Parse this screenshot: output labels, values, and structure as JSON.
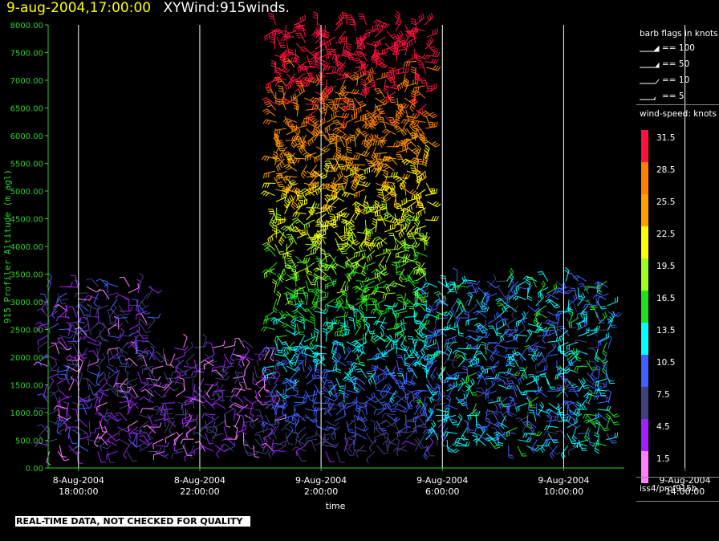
{
  "header": {
    "datetime": "9-aug-2004,17:00:00",
    "product": "XYWind:915winds."
  },
  "colors": {
    "axis": "#30d030",
    "grid": "#ffffff",
    "title_date": "#ffff00"
  },
  "legend": {
    "barb_title": "barb flags in knots",
    "barb_flags": [
      "== 100",
      "== 50",
      "== 10",
      "== 5"
    ],
    "speed_title": "wind-speed: knots",
    "speed_scale": [
      {
        "label": "31.5",
        "color": "#ff1040"
      },
      {
        "label": "28.5",
        "color": "#ff8000"
      },
      {
        "label": "25.5",
        "color": "#ffa000"
      },
      {
        "label": "22.5",
        "color": "#ffff00"
      },
      {
        "label": "19.5",
        "color": "#a0ff20"
      },
      {
        "label": "16.5",
        "color": "#20e020"
      },
      {
        "label": "13.5",
        "color": "#00ffff"
      },
      {
        "label": "10.5",
        "color": "#4060ff"
      },
      {
        "label": "7.5",
        "color": "#404080"
      },
      {
        "label": "4.5",
        "color": "#a020ff"
      },
      {
        "label": "1.5",
        "color": "#ff80ff"
      }
    ],
    "station": "iss4/prof915h"
  },
  "footer": {
    "qc_notice": "REAL-TIME DATA, NOT CHECKED FOR QUALITY"
  },
  "chart_data": {
    "type": "wind-barb time-height profile",
    "ylabel": "915 Profiler Altitude (m agl)",
    "xlabel": "time",
    "ylim": [
      0,
      8000
    ],
    "y_ticks": [
      "0.00",
      "500.00",
      "1000.00",
      "1500.00",
      "2000.00",
      "2500.00",
      "3000.00",
      "3500.00",
      "4000.00",
      "4500.00",
      "5000.00",
      "5500.00",
      "6000.00",
      "6500.00",
      "7000.00",
      "7500.00",
      "8000.00"
    ],
    "x_ticks": [
      {
        "date": "8-Aug-2004",
        "time": "18:00:00"
      },
      {
        "date": "8-Aug-2004",
        "time": "22:00:00"
      },
      {
        "date": "9-Aug-2004",
        "time": "2:00:00"
      },
      {
        "date": "9-Aug-2004",
        "time": "6:00:00"
      },
      {
        "date": "9-Aug-2004",
        "time": "10:00:00"
      },
      {
        "date": "9-Aug-2004",
        "time": "14:00:00"
      }
    ],
    "x_range_hours": [
      -1,
      18
    ],
    "grid": "vertical lines at x ticks",
    "speed_bins_knots": [
      1.5,
      4.5,
      7.5,
      10.5,
      13.5,
      16.5,
      19.5,
      22.5,
      25.5,
      28.5,
      31.5
    ],
    "regimes": [
      {
        "hours": [
          -1,
          2.5
        ],
        "alt_m": [
          300,
          3300
        ],
        "typical_speed_kt": 6
      },
      {
        "hours": [
          2.5,
          6.5
        ],
        "alt_m": [
          300,
          2200
        ],
        "typical_speed_kt": 5
      },
      {
        "hours": [
          6.5,
          11.5
        ],
        "alt_m": [
          300,
          8000
        ],
        "typical_speed_kt": 18
      },
      {
        "hours": [
          11.5,
          17.5
        ],
        "alt_m": [
          400,
          3400
        ],
        "typical_speed_kt": 12
      }
    ]
  }
}
